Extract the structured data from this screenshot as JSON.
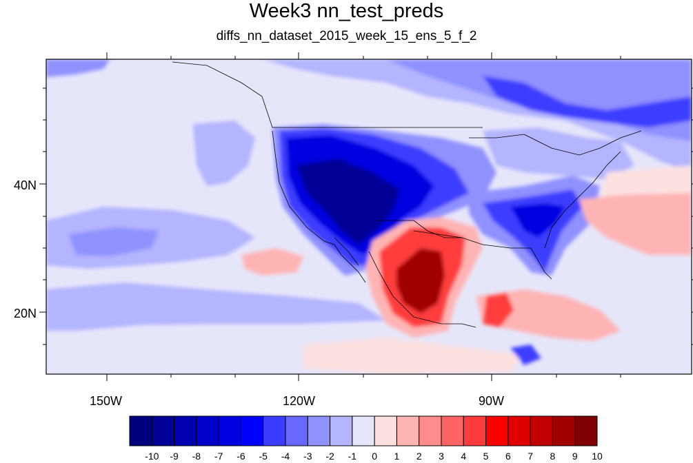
{
  "title": "Week3 nn_test_preds",
  "subtitle": "diffs_nn_dataset_2015_week_15_ens_5_f_2",
  "lat_labels": [
    "40N",
    "20N"
  ],
  "lon_labels": [
    "150W",
    "120W",
    "90W"
  ],
  "colorbar": {
    "labels": [
      "-10",
      "-9",
      "-8",
      "-7",
      "-6",
      "-5",
      "-4",
      "-3",
      "-2",
      "-1",
      "0",
      "1",
      "2",
      "3",
      "4",
      "5",
      "6",
      "7",
      "8",
      "9",
      "10"
    ],
    "colors": [
      "#00007f",
      "#000096",
      "#0000b0",
      "#0000c8",
      "#0000e0",
      "#0000fc",
      "#3c3cff",
      "#6868ff",
      "#9090ff",
      "#b4b4ff",
      "#e6e6fb",
      "#fde1e1",
      "#ffb4b4",
      "#ff8c8c",
      "#ff6464",
      "#ff3c3c",
      "#fc0000",
      "#e00000",
      "#c00000",
      "#a00000",
      "#7f0000"
    ]
  },
  "map": {
    "colors": {
      "background": "#e6e6fb",
      "light_blue": "#b4b4ff",
      "mid_blue": "#9090ff",
      "blue": "#3c3cff",
      "strong_blue": "#0000e0",
      "deep_blue": "#000096",
      "light_red": "#fde1e1",
      "pink": "#ffb4b4",
      "red": "#ff3c3c",
      "dark_red": "#a00000"
    }
  }
}
